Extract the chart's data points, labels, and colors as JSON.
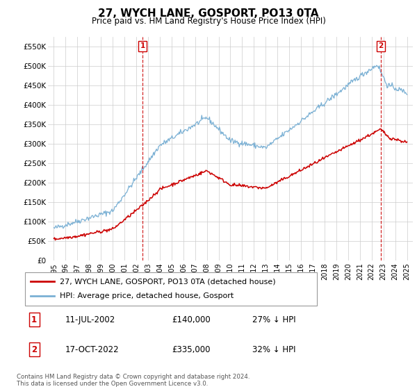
{
  "title": "27, WYCH LANE, GOSPORT, PO13 0TA",
  "subtitle": "Price paid vs. HM Land Registry's House Price Index (HPI)",
  "hpi_color": "#7ab0d4",
  "price_color": "#cc0000",
  "marker_color": "#cc0000",
  "background_color": "#ffffff",
  "plot_bg_color": "#ffffff",
  "grid_color": "#cccccc",
  "ylim": [
    0,
    575000
  ],
  "yticks": [
    0,
    50000,
    100000,
    150000,
    200000,
    250000,
    300000,
    350000,
    400000,
    450000,
    500000,
    550000
  ],
  "ytick_labels": [
    "£0",
    "£50K",
    "£100K",
    "£150K",
    "£200K",
    "£250K",
    "£300K",
    "£350K",
    "£400K",
    "£450K",
    "£500K",
    "£550K"
  ],
  "sale1_date": 2002.53,
  "sale1_price": 140000,
  "sale1_label": "1",
  "sale2_date": 2022.79,
  "sale2_price": 335000,
  "sale2_label": "2",
  "legend_line1": "27, WYCH LANE, GOSPORT, PO13 0TA (detached house)",
  "legend_line2": "HPI: Average price, detached house, Gosport",
  "table_row1": [
    "1",
    "11-JUL-2002",
    "£140,000",
    "27% ↓ HPI"
  ],
  "table_row2": [
    "2",
    "17-OCT-2022",
    "£335,000",
    "32% ↓ HPI"
  ],
  "footnote": "Contains HM Land Registry data © Crown copyright and database right 2024.\nThis data is licensed under the Open Government Licence v3.0.",
  "xlim_start": 1994.5,
  "xlim_end": 2025.5
}
